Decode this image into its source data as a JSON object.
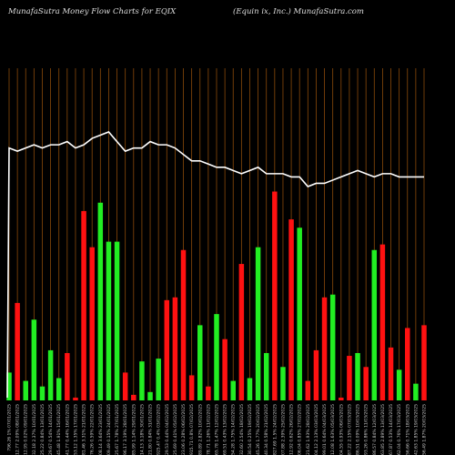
{
  "header": {
    "title_left": "MunafaSutra  Money Flow  Charts for EQIX",
    "title_right": "(Equin                    ix, Inc.) MunafaSutra.com"
  },
  "colors": {
    "background": "#000000",
    "up": "#22ee22",
    "down": "#ff1111",
    "line": "#ffffff",
    "grid": "#8a4a0a"
  },
  "chart_data": {
    "type": "bar",
    "grid": true,
    "line_series_color": "#ffffff",
    "bar_max_scale": 100,
    "categories": [
      "796.26 1% 07/01/2025",
      "812.77 2.09% 08/01/2025",
      "812.95 0.02% 09/01/2025",
      "832.18 2.37% 10/01/2025",
      "825.22 0.84% 13/01/2025",
      "829.67 0.54% 14/01/2025",
      "845.48 1.91% 15/01/2025",
      "841.77 0.44% 16/01/2025",
      "853.12 1.35% 17/01/2025",
      "881.46 3.31% 21/01/2025",
      "876.26 0.59% 22/01/2025",
      "908.14 3.64% 23/01/2025",
      "909.49 0.15% 24/01/2025",
      "925.67 1.78% 27/01/2025",
      "896.17 3.19% 28/01/2025",
      "885.99 1.14% 29/01/2025",
      "914.13 3.18% 30/01/2025",
      "921.80 0.84% 31/01/2025",
      "925.47 0.4% 03/02/2025",
      "929.53 0.44% 04/02/2025",
      "925.69 0.41% 05/02/2025",
      "923.06 0.28% 06/02/2025",
      "915.71 0.8% 07/02/2025",
      "889.89 2.82% 10/02/2025",
      "878.71 1.26% 11/02/2025",
      "865.78 1.47% 12/02/2025",
      "869.51 0.43% 13/02/2025",
      "854.28 1.75% 14/02/2025",
      "832.60 2.54% 18/02/2025",
      "830.54 0.25% 19/02/2025",
      "845.26 1.77% 20/02/2025",
      "840.34 0.58% 21/02/2025",
      "827.69 1.5% 24/02/2025",
      "807.88 2.39% 25/02/2025",
      "812.92 0.62% 26/02/2025",
      "806.04 0.85% 27/02/2025",
      "821.62 1.93% 28/02/2025",
      "804.12 2.13% 03/03/2025",
      "799.01 0.64% 04/03/2025",
      "812.08 1.63% 05/03/2025",
      "804.55 0.93% 06/03/2025",
      "787.22 2.15% 07/03/2025",
      "786.51 0.09% 10/03/2025",
      "793.26 0.86% 11/03/2025",
      "786.57 0.84% 12/03/2025",
      "763.85 2.89% 13/03/2025",
      "767.87 0.53% 14/03/2025",
      "762.04 0.76% 17/03/2025",
      "756.66 0.71% 18/03/2025",
      "742.63 1.85% 19/03/2025",
      "756.49 1.87% 20/03/2025"
    ],
    "bar_directions": [
      "up",
      "down",
      "up",
      "up",
      "up",
      "up",
      "up",
      "down",
      "down",
      "down",
      "down",
      "up",
      "up",
      "up",
      "down",
      "down",
      "up",
      "up",
      "up",
      "down",
      "down",
      "down",
      "down",
      "up",
      "down",
      "up",
      "down",
      "up",
      "down",
      "up",
      "up",
      "up",
      "down",
      "up",
      "down",
      "up",
      "down",
      "down",
      "down",
      "up",
      "down",
      "down",
      "up",
      "down",
      "up",
      "down",
      "down",
      "up",
      "down",
      "up",
      "down"
    ],
    "volume": [
      10,
      35,
      7,
      29,
      5,
      18,
      8,
      17,
      1,
      68,
      55,
      71,
      57,
      57,
      10,
      2,
      14,
      3,
      15,
      36,
      37,
      54,
      9,
      27,
      5,
      31,
      22,
      7,
      49,
      8,
      55,
      17,
      75,
      12,
      65,
      62,
      7,
      18,
      37,
      38,
      1,
      16,
      17,
      12,
      54,
      56,
      19,
      11,
      26,
      6,
      27
    ],
    "money_flow_line": [
      65,
      64,
      65,
      66,
      65,
      66,
      66,
      67,
      65,
      66,
      68,
      69,
      70,
      67,
      64,
      65,
      65,
      67,
      66,
      66,
      65,
      63,
      61,
      61,
      60,
      59,
      59,
      58,
      57,
      58,
      59,
      57,
      57,
      57,
      56,
      56,
      53,
      54,
      54,
      55,
      56,
      57,
      58,
      57,
      56,
      57,
      57,
      56,
      56,
      56,
      56
    ]
  }
}
